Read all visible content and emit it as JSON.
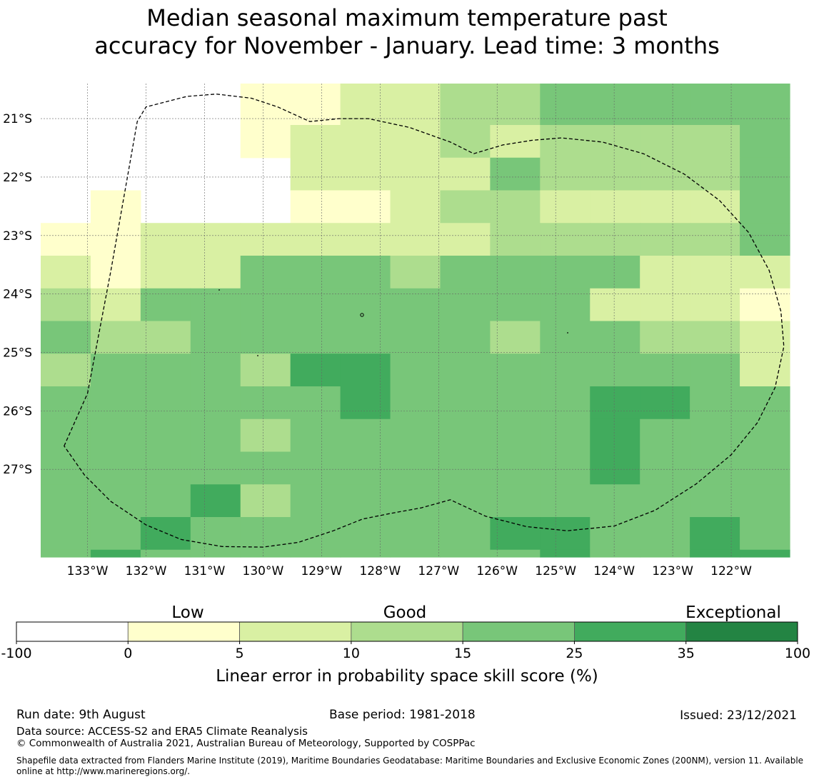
{
  "title": {
    "line1": "Median seasonal maximum temperature past",
    "line2": "accuracy for November - January. Lead time: 3 months"
  },
  "map": {
    "lat_labels": [
      "21°S",
      "22°S",
      "23°S",
      "24°S",
      "25°S",
      "26°S",
      "27°S"
    ],
    "lon_labels": [
      "133°W",
      "132°W",
      "131°W",
      "130°W",
      "129°W",
      "128°W",
      "127°W",
      "126°W",
      "125°W",
      "124°W",
      "123°W",
      "122°W"
    ],
    "lat_values": [
      -21,
      -22,
      -23,
      -24,
      -25,
      -26,
      -27
    ],
    "lon_values": [
      -133,
      -132,
      -131,
      -130,
      -129,
      -128,
      -127,
      -126,
      -125,
      -124,
      -123,
      -122
    ],
    "extent": {
      "lon_min": -133.8,
      "lon_max": -121.0,
      "lat_max": -20.4,
      "lat_min": -28.5
    },
    "cell_deg": 0.833,
    "grid_columns_lon_start": -133.8,
    "grid_rows_lat_start": -20.43,
    "grid_columns": 15,
    "grid_rows": 15,
    "row_top_fractions": [
      0.45,
      1.0
    ],
    "colors": {
      "c0": "#ffffcc",
      "c1": "#d9f0a3",
      "c2": "#addd8e",
      "c3": "#78c679",
      "c4": "#41ab5d",
      "c5": "#238443"
    },
    "skill_grid": [
      [
        null,
        null,
        null,
        null,
        0,
        0,
        1,
        1,
        2,
        2,
        3,
        3,
        3,
        3,
        3
      ],
      [
        null,
        null,
        null,
        null,
        0,
        1,
        1,
        1,
        2,
        1,
        2,
        2,
        2,
        2,
        3
      ],
      [
        null,
        null,
        null,
        null,
        null,
        1,
        1,
        1,
        1,
        3,
        2,
        2,
        2,
        2,
        3
      ],
      [
        null,
        0,
        null,
        null,
        null,
        0,
        0,
        1,
        2,
        2,
        1,
        1,
        1,
        1,
        3
      ],
      [
        0,
        0,
        1,
        1,
        1,
        1,
        1,
        1,
        1,
        2,
        2,
        2,
        2,
        2,
        3
      ],
      [
        1,
        0,
        1,
        1,
        3,
        3,
        3,
        2,
        3,
        3,
        3,
        3,
        1,
        1,
        1
      ],
      [
        2,
        1,
        3,
        3,
        3,
        3,
        3,
        3,
        3,
        3,
        3,
        1,
        1,
        1,
        0
      ],
      [
        3,
        2,
        2,
        3,
        3,
        3,
        3,
        3,
        3,
        2,
        3,
        3,
        2,
        2,
        1
      ],
      [
        2,
        3,
        3,
        3,
        2,
        4,
        4,
        3,
        3,
        3,
        3,
        3,
        3,
        3,
        1
      ],
      [
        3,
        3,
        3,
        3,
        3,
        3,
        4,
        3,
        3,
        3,
        3,
        4,
        4,
        3,
        3
      ],
      [
        3,
        3,
        3,
        3,
        2,
        3,
        3,
        3,
        3,
        3,
        3,
        4,
        3,
        3,
        3
      ],
      [
        3,
        3,
        3,
        3,
        3,
        3,
        3,
        3,
        3,
        3,
        3,
        4,
        3,
        3,
        3
      ],
      [
        3,
        3,
        3,
        4,
        2,
        3,
        3,
        3,
        3,
        3,
        3,
        3,
        3,
        3,
        3
      ],
      [
        3,
        3,
        4,
        3,
        3,
        3,
        3,
        3,
        3,
        4,
        4,
        3,
        3,
        4,
        3
      ],
      [
        3,
        4,
        3,
        3,
        3,
        3,
        3,
        3,
        3,
        3,
        4,
        3,
        3,
        4,
        4
      ]
    ],
    "eez_boundary_lonlat": [
      [
        -133.4,
        -26.6
      ],
      [
        -133.0,
        -25.7
      ],
      [
        -132.6,
        -23.6
      ],
      [
        -132.15,
        -21.05
      ],
      [
        -132.0,
        -20.8
      ],
      [
        -131.3,
        -20.62
      ],
      [
        -130.8,
        -20.58
      ],
      [
        -130.2,
        -20.65
      ],
      [
        -129.75,
        -20.8
      ],
      [
        -129.2,
        -21.05
      ],
      [
        -128.7,
        -21.0
      ],
      [
        -128.2,
        -21.0
      ],
      [
        -127.5,
        -21.15
      ],
      [
        -126.8,
        -21.4
      ],
      [
        -126.4,
        -21.6
      ],
      [
        -125.9,
        -21.45
      ],
      [
        -125.4,
        -21.37
      ],
      [
        -124.9,
        -21.33
      ],
      [
        -124.2,
        -21.4
      ],
      [
        -123.5,
        -21.6
      ],
      [
        -122.8,
        -21.95
      ],
      [
        -122.2,
        -22.4
      ],
      [
        -121.7,
        -22.95
      ],
      [
        -121.35,
        -23.6
      ],
      [
        -121.15,
        -24.3
      ],
      [
        -121.1,
        -24.9
      ],
      [
        -121.25,
        -25.6
      ],
      [
        -121.55,
        -26.2
      ],
      [
        -122.0,
        -26.75
      ],
      [
        -122.6,
        -27.25
      ],
      [
        -123.3,
        -27.7
      ],
      [
        -124.0,
        -27.97
      ],
      [
        -124.8,
        -28.05
      ],
      [
        -125.5,
        -27.98
      ],
      [
        -126.2,
        -27.8
      ],
      [
        -126.8,
        -27.52
      ],
      [
        -127.3,
        -27.66
      ],
      [
        -127.8,
        -27.75
      ],
      [
        -128.3,
        -27.85
      ],
      [
        -128.8,
        -28.05
      ],
      [
        -129.4,
        -28.25
      ],
      [
        -130.0,
        -28.33
      ],
      [
        -130.7,
        -28.32
      ],
      [
        -131.4,
        -28.2
      ],
      [
        -132.0,
        -27.95
      ],
      [
        -132.6,
        -27.55
      ],
      [
        -133.05,
        -27.1
      ],
      [
        -133.4,
        -26.6
      ]
    ]
  },
  "legend": {
    "labels": [
      "Low",
      "Good",
      "Exceptional"
    ],
    "ticks": [
      "-100",
      "0",
      "5",
      "10",
      "15",
      "25",
      "35",
      "100"
    ],
    "colors": [
      "#ffffff",
      "#ffffcc",
      "#d9f0a3",
      "#addd8e",
      "#78c679",
      "#41ab5d",
      "#238443"
    ],
    "xlabel": "Linear error in probability space skill score (%)"
  },
  "footer": {
    "run_date": "Run date: 9th August",
    "base_period": "Base period: 1981-2018",
    "issued": "Issued: 23/12/2021",
    "data_source": "Data source: ACCESS-S2 and ERA5 Climate Reanalysis",
    "copyright": "© Commonwealth of Australia 2021, Australian Bureau of Meteorology, Supported by COSPPac",
    "shapefile_line1": "Shapefile data extracted from Flanders Marine Institute (2019), Maritime Boundaries Geodatabase: Maritime Boundaries and Exclusive Economic Zones (200NM), version 11. Available",
    "shapefile_line2": "online at http://www.marineregions.org/."
  }
}
